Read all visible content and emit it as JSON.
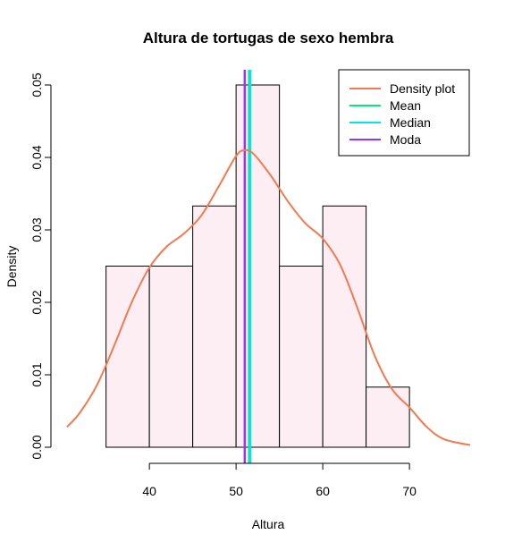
{
  "chart_data": {
    "type": "bar",
    "title": "Altura de tortugas de sexo hembra",
    "xlabel": "Altura",
    "ylabel": "Density",
    "xlim": [
      30.5,
      77
    ],
    "ylim": [
      0,
      0.05
    ],
    "x_ticks": [
      40,
      50,
      60,
      70
    ],
    "y_ticks": [
      0.0,
      0.01,
      0.02,
      0.03,
      0.04,
      0.05
    ],
    "y_tick_labels": [
      "0.00",
      "0.01",
      "0.02",
      "0.03",
      "0.04",
      "0.05"
    ],
    "histogram": {
      "bins": [
        {
          "start": 35,
          "end": 40,
          "density": 0.025
        },
        {
          "start": 40,
          "end": 45,
          "density": 0.025
        },
        {
          "start": 45,
          "end": 50,
          "density": 0.0333
        },
        {
          "start": 50,
          "end": 55,
          "density": 0.05
        },
        {
          "start": 55,
          "end": 60,
          "density": 0.025
        },
        {
          "start": 60,
          "end": 65,
          "density": 0.0333
        },
        {
          "start": 65,
          "end": 70,
          "density": 0.0083
        }
      ],
      "fill_color": "#fdeef4",
      "border_color": "#000000"
    },
    "density_curve": {
      "name": "Density plot",
      "color": "#f4794f",
      "x": [
        30.5,
        32,
        34,
        36,
        38,
        40,
        42,
        44,
        46,
        48,
        50,
        51,
        52,
        54,
        56,
        58,
        60,
        62,
        64,
        66,
        68,
        70,
        72,
        74,
        77
      ],
      "y": [
        0.0028,
        0.0048,
        0.0087,
        0.0142,
        0.0201,
        0.0248,
        0.0277,
        0.0295,
        0.032,
        0.036,
        0.0402,
        0.041,
        0.0405,
        0.0375,
        0.0339,
        0.0309,
        0.0288,
        0.0252,
        0.0192,
        0.0126,
        0.008,
        0.0055,
        0.0028,
        0.0011,
        0.0003
      ]
    },
    "vlines": [
      {
        "name": "Mean",
        "x": 51.5,
        "color": "#00ee76"
      },
      {
        "name": "Median",
        "x": 51.5,
        "color": "#00e5ee"
      },
      {
        "name": "Moda",
        "x": 51.0,
        "color": "#9b30ff"
      }
    ],
    "legend": {
      "placement": "top-right",
      "entries": [
        {
          "label": "Density plot",
          "color": "#f4794f"
        },
        {
          "label": "Mean",
          "color": "#00ee76"
        },
        {
          "label": "Median",
          "color": "#00e5ee"
        },
        {
          "label": "Moda",
          "color": "#9b30ff"
        }
      ]
    },
    "grid": false
  }
}
